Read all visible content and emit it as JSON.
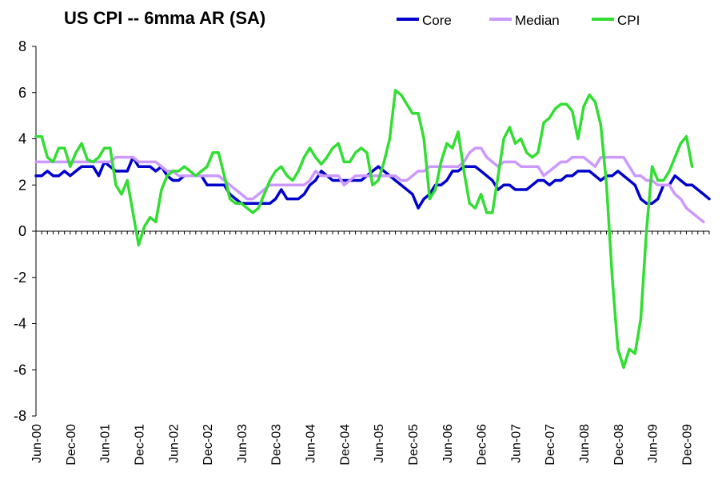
{
  "chart_data": {
    "type": "line",
    "title": "US CPI -- 6mma AR (SA)",
    "xlabel": "",
    "ylabel": "",
    "ylim": [
      -8,
      8
    ],
    "yticks": [
      8,
      6,
      4,
      2,
      0,
      -2,
      -4,
      -6,
      -8
    ],
    "xtick_labels": [
      "Jun-00",
      "Dec-00",
      "Jun-01",
      "Dec-01",
      "Jun-02",
      "Dec-02",
      "Jun-03",
      "Dec-03",
      "Jun-04",
      "Dec-04",
      "Jun-05",
      "Dec-05",
      "Jun-06",
      "Dec-06",
      "Jun-07",
      "Dec-07",
      "Jun-08",
      "Dec-08",
      "Jun-09",
      "Dec-09"
    ],
    "x_start": "Jun-00",
    "x_frequency": "monthly",
    "legend_position": "top",
    "series": [
      {
        "name": "Core",
        "color": "#0000CC",
        "values": [
          2.4,
          2.4,
          2.6,
          2.4,
          2.4,
          2.6,
          2.4,
          2.6,
          2.8,
          2.8,
          2.8,
          2.4,
          3.0,
          2.8,
          2.6,
          2.6,
          2.6,
          3.2,
          2.8,
          2.8,
          2.8,
          2.6,
          2.8,
          2.4,
          2.2,
          2.2,
          2.4,
          2.4,
          2.4,
          2.4,
          2.0,
          2.0,
          2.0,
          2.0,
          1.6,
          1.4,
          1.2,
          1.2,
          1.2,
          1.2,
          1.2,
          1.2,
          1.4,
          1.8,
          1.4,
          1.4,
          1.4,
          1.6,
          2.0,
          2.2,
          2.6,
          2.4,
          2.2,
          2.2,
          2.2,
          2.2,
          2.2,
          2.2,
          2.4,
          2.6,
          2.8,
          2.6,
          2.4,
          2.2,
          2.0,
          1.8,
          1.6,
          1.0,
          1.4,
          1.6,
          2.0,
          2.0,
          2.2,
          2.6,
          2.6,
          2.8,
          2.8,
          2.8,
          2.6,
          2.4,
          2.2,
          1.8,
          2.0,
          2.0,
          1.8,
          1.8,
          1.8,
          2.0,
          2.2,
          2.2,
          2.0,
          2.2,
          2.2,
          2.4,
          2.4,
          2.6,
          2.6,
          2.6,
          2.4,
          2.2,
          2.4,
          2.4,
          2.6,
          2.4,
          2.2,
          2.0,
          1.4,
          1.2,
          1.2,
          1.4,
          2.0,
          2.0,
          2.4,
          2.2,
          2.0,
          2.0,
          1.8,
          1.6,
          1.4
        ]
      },
      {
        "name": "Median",
        "color": "#CC99FF",
        "values": [
          3.0,
          3.0,
          3.0,
          3.0,
          3.0,
          3.0,
          3.0,
          3.0,
          3.0,
          3.0,
          3.0,
          3.0,
          3.0,
          3.0,
          3.2,
          3.2,
          3.2,
          3.2,
          3.0,
          3.0,
          3.0,
          3.0,
          2.8,
          2.6,
          2.6,
          2.4,
          2.4,
          2.4,
          2.4,
          2.4,
          2.4,
          2.4,
          2.4,
          2.2,
          2.0,
          1.8,
          1.6,
          1.4,
          1.4,
          1.6,
          1.8,
          2.0,
          2.0,
          2.0,
          2.0,
          2.0,
          2.0,
          2.0,
          2.2,
          2.6,
          2.4,
          2.4,
          2.4,
          2.4,
          2.0,
          2.2,
          2.4,
          2.4,
          2.4,
          2.4,
          2.4,
          2.4,
          2.4,
          2.4,
          2.2,
          2.2,
          2.4,
          2.6,
          2.6,
          2.8,
          2.8,
          2.8,
          2.8,
          2.8,
          2.8,
          3.0,
          3.4,
          3.6,
          3.6,
          3.2,
          3.0,
          2.8,
          3.0,
          3.0,
          3.0,
          2.8,
          2.8,
          2.8,
          2.8,
          2.4,
          2.6,
          2.8,
          3.0,
          3.0,
          3.2,
          3.2,
          3.2,
          3.0,
          2.8,
          3.2,
          3.2,
          3.2,
          3.2,
          3.2,
          2.8,
          2.4,
          2.4,
          2.2,
          2.2,
          2.0,
          2.0,
          2.0,
          1.6,
          1.4,
          1.0,
          0.8,
          0.6,
          0.4
        ]
      },
      {
        "name": "CPI",
        "color": "#33DD33",
        "values": [
          4.1,
          4.1,
          3.2,
          3.0,
          3.6,
          3.6,
          2.8,
          3.4,
          3.8,
          3.1,
          3.0,
          3.2,
          3.6,
          3.6,
          2.0,
          1.6,
          2.2,
          0.8,
          -0.6,
          0.2,
          0.6,
          0.4,
          1.8,
          2.4,
          2.6,
          2.6,
          2.8,
          2.6,
          2.4,
          2.6,
          2.8,
          3.4,
          3.4,
          2.4,
          1.4,
          1.2,
          1.2,
          1.0,
          0.8,
          1.0,
          1.6,
          2.2,
          2.6,
          2.8,
          2.4,
          2.2,
          2.6,
          3.2,
          3.6,
          3.2,
          2.9,
          3.2,
          3.6,
          3.8,
          3.0,
          3.0,
          3.4,
          3.6,
          3.4,
          2.0,
          2.2,
          3.0,
          4.0,
          6.1,
          5.9,
          5.5,
          5.1,
          5.1,
          4.0,
          1.4,
          1.8,
          3.0,
          3.8,
          3.6,
          4.3,
          2.6,
          1.2,
          1.0,
          1.6,
          0.8,
          0.8,
          2.4,
          4.0,
          4.5,
          3.8,
          4.0,
          3.4,
          3.2,
          3.4,
          4.7,
          4.9,
          5.3,
          5.5,
          5.5,
          5.2,
          4.0,
          5.4,
          5.9,
          5.6,
          4.6,
          2.0,
          -2.0,
          -5.1,
          -5.9,
          -5.1,
          -5.3,
          -3.8,
          0.0,
          2.8,
          2.2,
          2.2,
          2.6,
          3.2,
          3.8,
          4.1,
          2.8
        ]
      }
    ]
  }
}
